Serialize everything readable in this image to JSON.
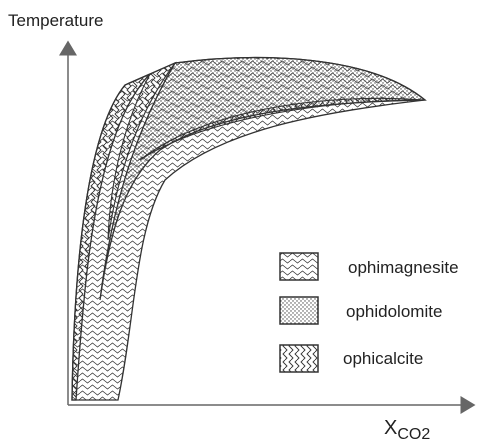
{
  "axes": {
    "y_label": "Temperature",
    "x_label": "X",
    "x_label_subscript": "CO2"
  },
  "legend": [
    {
      "label": "ophimagnesite"
    },
    {
      "label": "ophidolomite"
    },
    {
      "label": "ophicalcite"
    }
  ]
}
